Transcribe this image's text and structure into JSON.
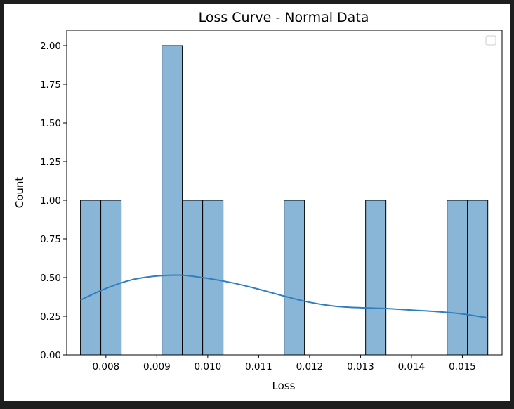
{
  "chart_data": {
    "type": "bar",
    "title": "Loss Curve - Normal Data",
    "xlabel": "Loss",
    "ylabel": "Count",
    "xlim": [
      0.00723,
      0.01578
    ],
    "ylim": [
      0,
      2.1
    ],
    "xticks": [
      0.008,
      0.009,
      0.01,
      0.011,
      0.012,
      0.013,
      0.014,
      0.015
    ],
    "xtick_labels": [
      "0.008",
      "0.009",
      "0.010",
      "0.011",
      "0.012",
      "0.013",
      "0.014",
      "0.015"
    ],
    "yticks": [
      0,
      0.25,
      0.5,
      0.75,
      1.0,
      1.25,
      1.5,
      1.75,
      2.0
    ],
    "ytick_labels": [
      "0.00",
      "0.25",
      "0.50",
      "0.75",
      "1.00",
      "1.25",
      "1.50",
      "1.75",
      "2.00"
    ],
    "bins": {
      "edges": [
        0.0075,
        0.0079,
        0.0083,
        0.0087,
        0.0091,
        0.0095,
        0.0099,
        0.0103,
        0.0107,
        0.0111,
        0.0115,
        0.0119,
        0.0123,
        0.0127,
        0.0131,
        0.0135,
        0.0139,
        0.0143,
        0.0147,
        0.0151,
        0.0155
      ],
      "counts": [
        1,
        1,
        0,
        0,
        2,
        1,
        1,
        0,
        0,
        0,
        1,
        0,
        0,
        0,
        1,
        0,
        0,
        0,
        1,
        1
      ]
    },
    "kde": {
      "x": [
        0.0075,
        0.008,
        0.0085,
        0.009,
        0.0095,
        0.01,
        0.0105,
        0.011,
        0.0115,
        0.012,
        0.0125,
        0.013,
        0.0135,
        0.014,
        0.0145,
        0.015,
        0.0155
      ],
      "y": [
        0.355,
        0.43,
        0.485,
        0.51,
        0.515,
        0.495,
        0.465,
        0.425,
        0.38,
        0.34,
        0.315,
        0.305,
        0.3,
        0.29,
        0.28,
        0.265,
        0.24
      ]
    },
    "colors": {
      "bar_fill": "#89b5d7",
      "bar_edge": "#000000",
      "kde_line": "#2f7fbf"
    },
    "grid": false,
    "legend": "top-right"
  }
}
